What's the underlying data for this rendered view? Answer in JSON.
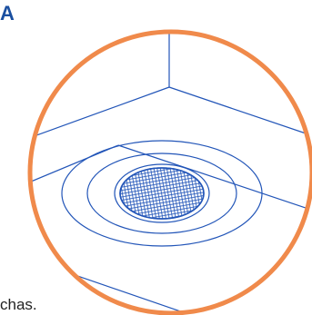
{
  "panel_label": "A",
  "caption_fragment": "chas.",
  "colors": {
    "circle_border": "#f08a4b",
    "line_art": "#2255b8",
    "panel_label": "#1a4fa0"
  },
  "icons": [
    "drain-mesh-icon"
  ]
}
